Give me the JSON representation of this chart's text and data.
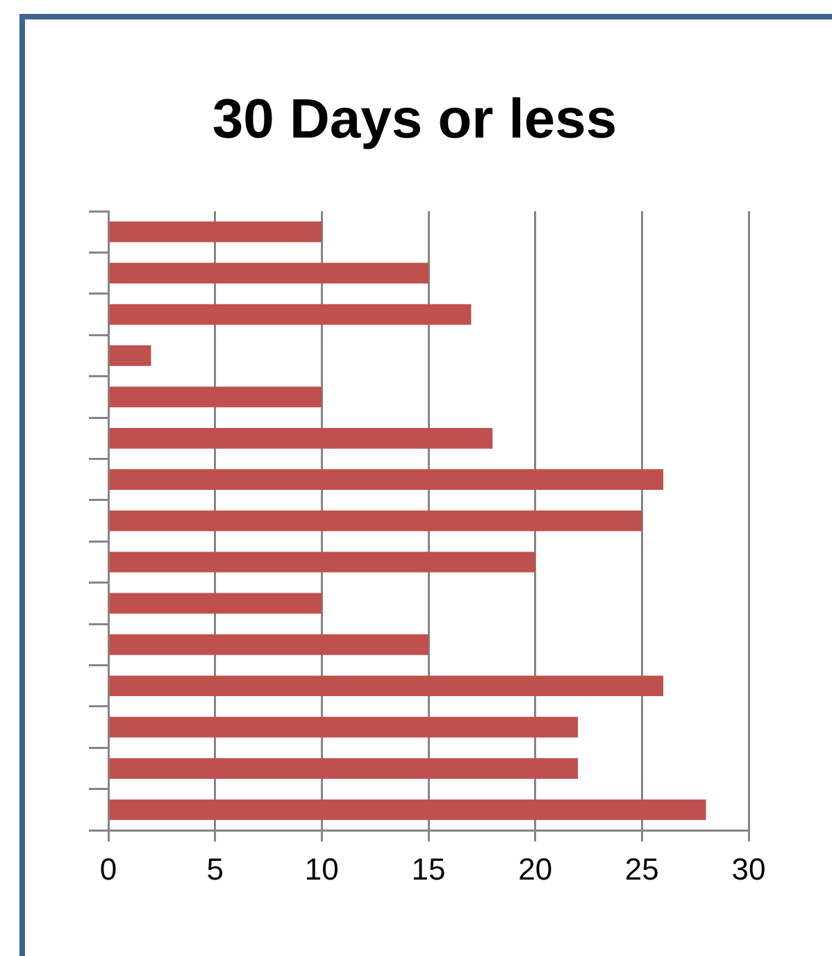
{
  "chart_data": {
    "type": "bar",
    "title": "30 Days or less",
    "orientation": "horizontal",
    "categories": [
      null,
      null,
      null,
      null,
      null,
      null,
      null,
      null,
      null,
      null,
      null,
      null,
      null,
      null,
      null
    ],
    "values": [
      10,
      15,
      17,
      2,
      10,
      18,
      26,
      25,
      20,
      10,
      15,
      26,
      22,
      22,
      28
    ],
    "color": "#c0504d",
    "xlim": [
      0,
      30
    ],
    "xticks": [
      0,
      5,
      10,
      15,
      20,
      25,
      30
    ],
    "grid": "x"
  }
}
